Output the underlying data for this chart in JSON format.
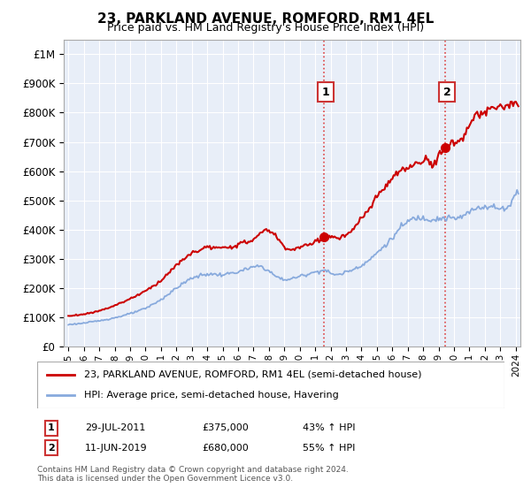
{
  "title": "23, PARKLAND AVENUE, ROMFORD, RM1 4EL",
  "subtitle": "Price paid vs. HM Land Registry's House Price Index (HPI)",
  "legend_line1": "23, PARKLAND AVENUE, ROMFORD, RM1 4EL (semi-detached house)",
  "legend_line2": "HPI: Average price, semi-detached house, Havering",
  "sale1_label": "1",
  "sale1_date": "29-JUL-2011",
  "sale1_price": "£375,000",
  "sale1_hpi": "43% ↑ HPI",
  "sale1_year": 2011.58,
  "sale1_value": 375000,
  "sale2_label": "2",
  "sale2_date": "11-JUN-2019",
  "sale2_price": "£680,000",
  "sale2_hpi": "55% ↑ HPI",
  "sale2_year": 2019.44,
  "sale2_value": 680000,
  "property_color": "#cc0000",
  "hpi_color": "#88aadd",
  "chart_bg_color": "#e8eef8",
  "dashed_color": "#dd4444",
  "background_color": "#ffffff",
  "grid_color": "#ffffff",
  "footer": "Contains HM Land Registry data © Crown copyright and database right 2024.\nThis data is licensed under the Open Government Licence v3.0.",
  "ylim": [
    0,
    1050000
  ],
  "yticks": [
    0,
    100000,
    200000,
    300000,
    400000,
    500000,
    600000,
    700000,
    800000,
    900000,
    1000000
  ],
  "ytick_labels": [
    "£0",
    "£100K",
    "£200K",
    "£300K",
    "£400K",
    "£500K",
    "£600K",
    "£700K",
    "£800K",
    "£900K",
    "£1M"
  ]
}
